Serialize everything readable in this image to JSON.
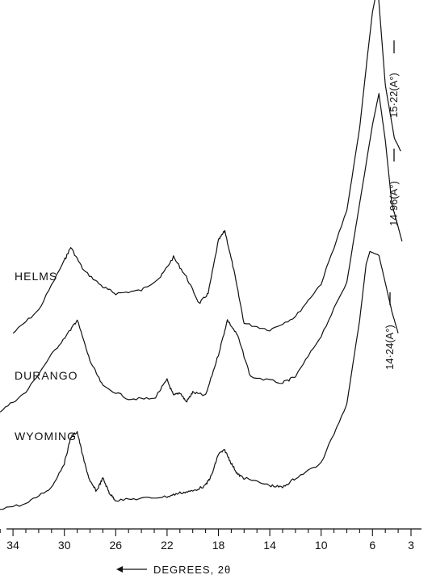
{
  "chart_data": {
    "type": "line",
    "title": "",
    "xlabel": "DEGREES, 2θ",
    "ylabel": "",
    "xlim": [
      35.5,
      2.5
    ],
    "x_ticks": [
      34,
      30,
      26,
      22,
      18,
      14,
      10,
      6,
      3
    ],
    "x_tick_labels": [
      "34",
      "30",
      "26",
      "22",
      "18",
      "14",
      "10",
      "6",
      "3"
    ],
    "grid": false,
    "series": [
      {
        "name": "HELMS",
        "peak_label": "15·22(A°)",
        "x": [
          34,
          32,
          30,
          29.5,
          28.5,
          27,
          26,
          24,
          22.5,
          21.5,
          20.5,
          19.5,
          18.8,
          18,
          17.5,
          16.8,
          16,
          14,
          12,
          10,
          8,
          7,
          6.5,
          6,
          5.6,
          5,
          4.3,
          3.8
        ],
        "y": [
          0.03,
          0.1,
          0.25,
          0.29,
          0.22,
          0.17,
          0.15,
          0.16,
          0.2,
          0.26,
          0.2,
          0.12,
          0.15,
          0.31,
          0.34,
          0.22,
          0.06,
          0.04,
          0.08,
          0.18,
          0.4,
          0.65,
          0.83,
          1.0,
          1.08,
          0.78,
          0.62,
          0.58
        ]
      },
      {
        "name": "DURANGO",
        "peak_label": "14·96(A°)",
        "x": [
          35,
          33,
          31,
          29.5,
          29,
          28,
          27,
          25,
          23,
          22,
          21.5,
          21,
          20.5,
          20,
          19,
          18,
          17.3,
          16.5,
          15.5,
          13,
          12,
          10,
          8,
          7,
          6,
          5.5,
          5,
          4.5,
          3.7
        ],
        "y": [
          0.04,
          0.1,
          0.22,
          0.3,
          0.33,
          0.2,
          0.12,
          0.08,
          0.08,
          0.14,
          0.09,
          0.1,
          0.07,
          0.1,
          0.09,
          0.22,
          0.33,
          0.28,
          0.15,
          0.13,
          0.15,
          0.28,
          0.45,
          0.7,
          0.95,
          1.05,
          0.9,
          0.7,
          0.58
        ]
      },
      {
        "name": "WYOMING",
        "peak_label": "14·24(A°)",
        "x": [
          35.5,
          33,
          31,
          30,
          29.5,
          29,
          28.5,
          28,
          27.5,
          27,
          26.5,
          26,
          24,
          22,
          21,
          20,
          19,
          18.5,
          18,
          17.5,
          17,
          16.5,
          16,
          14,
          13,
          12,
          10,
          8,
          7,
          6.5,
          6.2,
          5.5,
          5,
          4.5,
          4
        ],
        "y": [
          0.03,
          0.06,
          0.15,
          0.28,
          0.42,
          0.45,
          0.3,
          0.18,
          0.13,
          0.2,
          0.12,
          0.08,
          0.09,
          0.1,
          0.12,
          0.13,
          0.16,
          0.22,
          0.33,
          0.35,
          0.28,
          0.22,
          0.2,
          0.16,
          0.15,
          0.2,
          0.28,
          0.6,
          1.05,
          1.35,
          1.42,
          1.4,
          1.25,
          1.1,
          0.98
        ]
      }
    ]
  }
}
